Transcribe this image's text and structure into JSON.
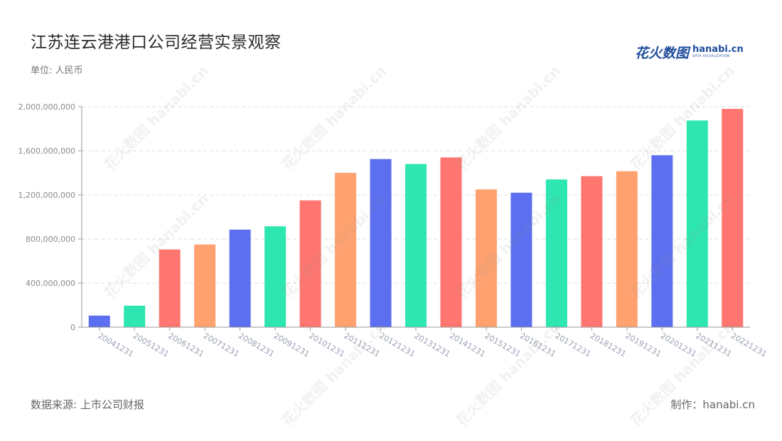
{
  "header": {
    "title": "江苏连云港港口公司经营实景观察",
    "unit": "单位: 人民币"
  },
  "logo": {
    "cn": "花火数图",
    "en": "hanabi.cn",
    "tagline": "DATA VISUALIZATION"
  },
  "footer": {
    "source": "数据来源: 上市公司财报",
    "credit": "制作：hanabi.cn"
  },
  "watermark": "花火数图 hanabi.cn",
  "colors": {
    "palette": [
      "#5b6ff0",
      "#2ee6b0",
      "#ff7670",
      "#ffa270"
    ],
    "axis": "#999999",
    "grid": "#dddddd",
    "tick_text": "#888888",
    "xtick_text": "#9aa0b5"
  },
  "chart_data": {
    "type": "bar",
    "categories": [
      "20041231",
      "20051231",
      "20061231",
      "20071231",
      "20081231",
      "20091231",
      "20101231",
      "20111231",
      "20121231",
      "20131231",
      "20141231",
      "20151231",
      "20161231",
      "20171231",
      "20181231",
      "20191231",
      "20201231",
      "20211231",
      "20221231"
    ],
    "values": [
      105000000,
      195000000,
      705000000,
      750000000,
      885000000,
      915000000,
      1150000000,
      1400000000,
      1525000000,
      1480000000,
      1540000000,
      1250000000,
      1220000000,
      1340000000,
      1370000000,
      1415000000,
      1560000000,
      1875000000,
      1980000000
    ],
    "bar_colors": [
      "#5b6ff0",
      "#2ee6b0",
      "#ff7670",
      "#ffa270",
      "#5b6ff0",
      "#2ee6b0",
      "#ff7670",
      "#ffa270",
      "#5b6ff0",
      "#2ee6b0",
      "#ff7670",
      "#ffa270",
      "#5b6ff0",
      "#2ee6b0",
      "#ff7670",
      "#ffa270",
      "#5b6ff0",
      "#2ee6b0",
      "#ff7670"
    ],
    "yticks": [
      0,
      400000000,
      800000000,
      1200000000,
      1600000000,
      2000000000
    ],
    "ytick_labels": [
      "0",
      "400,000,000",
      "800,000,000",
      "1,200,000,000",
      "1,600,000,000",
      "2,000,000,000"
    ],
    "ylim": [
      0,
      2000000000
    ],
    "grid": true,
    "legend": "none"
  }
}
